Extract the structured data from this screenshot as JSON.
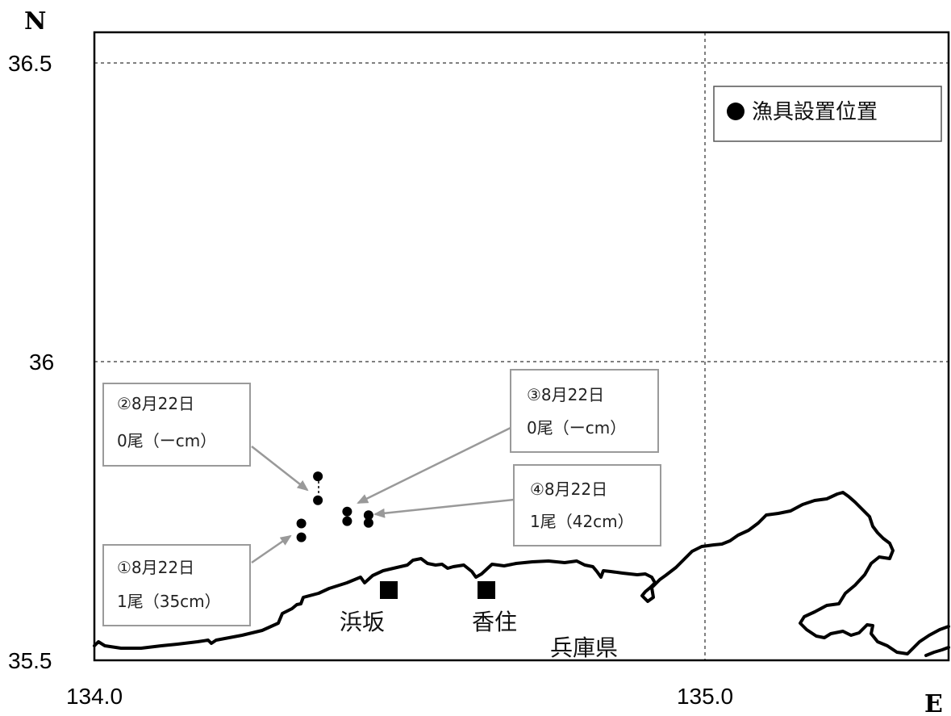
{
  "axes": {
    "north_letter": "N",
    "east_letter": "E",
    "lat_ticks": [
      {
        "value": 36.5,
        "label": "36.5"
      },
      {
        "value": 36.0,
        "label": "36"
      },
      {
        "value": 35.5,
        "label": "35.5"
      }
    ],
    "lon_ticks": [
      {
        "value": 134.0,
        "label": "134.0"
      },
      {
        "value": 135.0,
        "label": "135.0"
      }
    ]
  },
  "legend": {
    "marker": "black-circle",
    "label": "漁具設置位置"
  },
  "places": {
    "hamasaka": "浜坂",
    "kasumi": "香住",
    "hyogo": "兵庫県"
  },
  "callouts": [
    {
      "id": "1",
      "line1": "①8月22日",
      "line2": "1尾（35cm）"
    },
    {
      "id": "2",
      "line1": "②8月22日",
      "line2": "0尾（ーcm）"
    },
    {
      "id": "3",
      "line1": "③8月22日",
      "line2": "0尾（ーcm）"
    },
    {
      "id": "4",
      "line1": "④8月22日",
      "line2": "1尾（42cm）"
    }
  ],
  "gear_points": [
    {
      "lon": 134.339,
      "lat": 35.729
    },
    {
      "lon": 134.339,
      "lat": 35.706
    },
    {
      "lon": 134.366,
      "lat": 35.808
    },
    {
      "lon": 134.366,
      "lat": 35.768
    },
    {
      "lon": 134.414,
      "lat": 35.749
    },
    {
      "lon": 134.414,
      "lat": 35.733
    },
    {
      "lon": 134.449,
      "lat": 35.743
    },
    {
      "lon": 134.449,
      "lat": 35.73
    }
  ],
  "colors": {
    "coast": "#000000",
    "grid": "#000000",
    "arrow": "#999999",
    "box_border": "#9a9a9a"
  }
}
